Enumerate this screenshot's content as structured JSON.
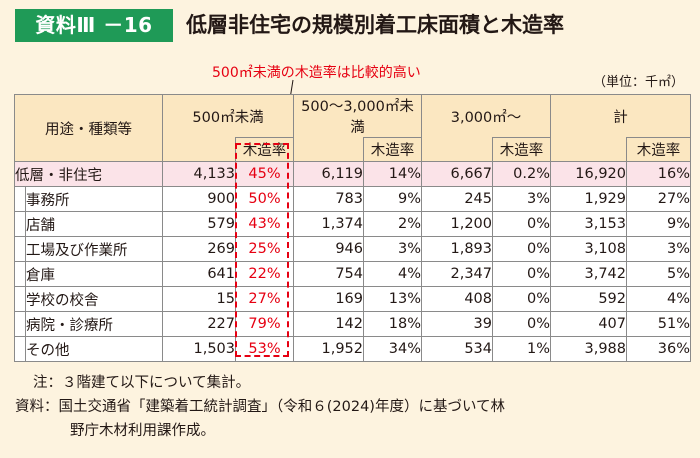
{
  "header": {
    "badge": "資料Ⅲ －16",
    "title": "低層非住宅の規模別着工床面積と木造率"
  },
  "annotation": "500㎡未満の木造率は比較的高い",
  "unit": "（単位：千㎡）",
  "table": {
    "header_use": "用途・種類等",
    "groups": [
      "500㎡未満",
      "500〜3,000㎡未満",
      "3,000㎡〜",
      "計"
    ],
    "sub_label": "木造率",
    "total_row": {
      "label": "低層・非住宅",
      "cells": [
        "4,133",
        "45%",
        "6,119",
        "14%",
        "6,667",
        "0.2%",
        "16,920",
        "16%"
      ]
    },
    "rows": [
      {
        "label": "事務所",
        "cells": [
          "900",
          "50%",
          "783",
          "9%",
          "245",
          "3%",
          "1,929",
          "27%"
        ]
      },
      {
        "label": "店舗",
        "cells": [
          "579",
          "43%",
          "1,374",
          "2%",
          "1,200",
          "0%",
          "3,153",
          "9%"
        ]
      },
      {
        "label": "工場及び作業所",
        "cells": [
          "269",
          "25%",
          "946",
          "3%",
          "1,893",
          "0%",
          "3,108",
          "3%"
        ]
      },
      {
        "label": "倉庫",
        "cells": [
          "641",
          "22%",
          "754",
          "4%",
          "2,347",
          "0%",
          "3,742",
          "5%"
        ]
      },
      {
        "label": "学校の校舎",
        "cells": [
          "15",
          "27%",
          "169",
          "13%",
          "408",
          "0%",
          "592",
          "4%"
        ]
      },
      {
        "label": "病院・診療所",
        "cells": [
          "227",
          "79%",
          "142",
          "18%",
          "39",
          "0%",
          "407",
          "51%"
        ]
      },
      {
        "label": "その他",
        "cells": [
          "1,503",
          "53%",
          "1,952",
          "34%",
          "534",
          "1%",
          "3,988",
          "36%"
        ]
      }
    ]
  },
  "notes": {
    "note1": "注：３階建て以下について集計。",
    "source_line1": "資料：国土交通省「建築着工統計調査」（令和６(2024)年度）に基づいて林",
    "source_line2": "野庁木材利用課作成。"
  },
  "colors": {
    "accent": "#1f9a57",
    "highlight_red": "#e60012",
    "header_bg": "#fbe7c1",
    "total_row_bg": "#fbe3e8",
    "page_bg": "#fdf3df"
  }
}
